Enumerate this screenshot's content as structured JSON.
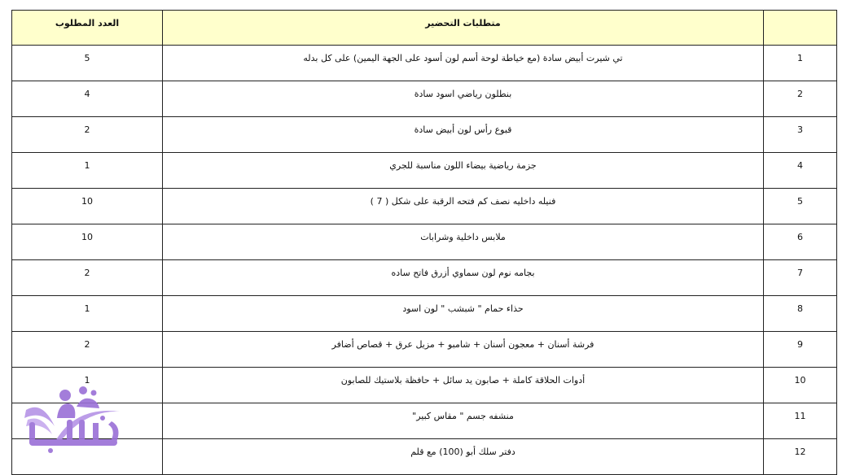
{
  "table": {
    "headers": {
      "index": "",
      "requirement": "متطلبات التحضير",
      "quantity": "العدد المطلوب"
    },
    "rows": [
      {
        "index": "1",
        "requirement": "تي شيرت أبيض سادة (مع خياطة لوحة أسم لون أسود على الجهة اليمين) على كل بدله",
        "quantity": "5"
      },
      {
        "index": "2",
        "requirement": "بنطلون رياضي اسود سادة",
        "quantity": "4"
      },
      {
        "index": "3",
        "requirement": "قبوع رأس لون أبيض سادة",
        "quantity": "2"
      },
      {
        "index": "4",
        "requirement": "جزمة رياضية بيضاء اللون مناسبة للجري",
        "quantity": "1"
      },
      {
        "index": "5",
        "requirement": "فنيله داخليه نصف كم فتحه الرقبة على شكل ( 7 )",
        "quantity": "10"
      },
      {
        "index": "6",
        "requirement": "ملابس داخلية وشرابات",
        "quantity": "10"
      },
      {
        "index": "7",
        "requirement": "بجامه نوم لون سماوي أزرق فاتح ساده",
        "quantity": "2"
      },
      {
        "index": "8",
        "requirement": "حذاء حمام \" شبشب \" لون اسود",
        "quantity": "1"
      },
      {
        "index": "9",
        "requirement": "فرشة أسنان + معجون أسنان + شامبو + مزيل عرق + قصاص أضافر",
        "quantity": "2"
      },
      {
        "index": "10",
        "requirement": "أدوات الحلاقة كاملة + صابون يد سائل + حافظة بلاستيك للصابون",
        "quantity": "1"
      },
      {
        "index": "11",
        "requirement": "منشفه جسم \" مقاس كبير\"",
        "quantity": ""
      },
      {
        "index": "12",
        "requirement": "دفتر سلك أبو (100) مع قلم",
        "quantity": ""
      }
    ]
  },
  "watermark": {
    "text": "طلابنا",
    "color": "#8e5fd0"
  },
  "colors": {
    "header_bg": "#ffffcc",
    "border": "#222222"
  }
}
